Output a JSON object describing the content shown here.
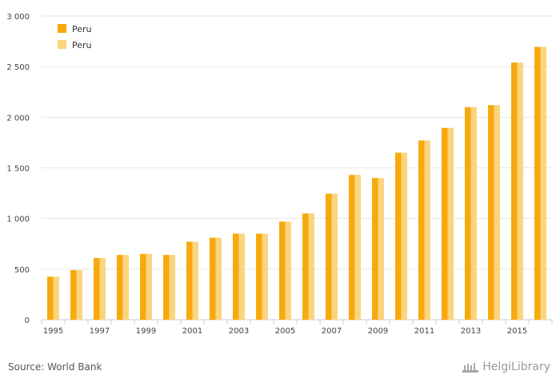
{
  "chart_data": {
    "type": "bar",
    "categories": [
      "1995",
      "1996",
      "1997",
      "1998",
      "1999",
      "2000",
      "2001",
      "2002",
      "2003",
      "2004",
      "2005",
      "2006",
      "2007",
      "2008",
      "2009",
      "2010",
      "2011",
      "2012",
      "2013",
      "2014",
      "2015",
      "2016"
    ],
    "x_tick_labels": [
      "1995",
      "",
      "1997",
      "",
      "1999",
      "",
      "2001",
      "",
      "2003",
      "",
      "2005",
      "",
      "2007",
      "",
      "2009",
      "",
      "2011",
      "",
      "2013",
      "",
      "2015",
      ""
    ],
    "series": [
      {
        "name": "Peru",
        "color": "#f7a90d",
        "values": [
          425,
          490,
          610,
          640,
          650,
          640,
          770,
          810,
          850,
          850,
          970,
          1050,
          1245,
          1430,
          1400,
          1650,
          1770,
          1895,
          2100,
          2120,
          2540,
          2695
        ]
      },
      {
        "name": "Peru",
        "color": "#fbd57e",
        "values": [
          425,
          490,
          610,
          640,
          650,
          640,
          770,
          810,
          850,
          850,
          970,
          1050,
          1245,
          1430,
          1400,
          1650,
          1770,
          1895,
          2100,
          2120,
          2540,
          2695
        ]
      }
    ],
    "ylim": [
      0,
      3000
    ],
    "y_ticks": [
      0,
      500,
      1000,
      1500,
      2000,
      2500,
      3000
    ],
    "y_tick_labels": [
      "0",
      "500",
      "1 000",
      "1 500",
      "2 000",
      "2 500",
      "3 000"
    ],
    "grid": true,
    "legend_position": "top-left"
  },
  "footer": {
    "source": "Source: World Bank",
    "brand": "HelgiLibrary"
  }
}
